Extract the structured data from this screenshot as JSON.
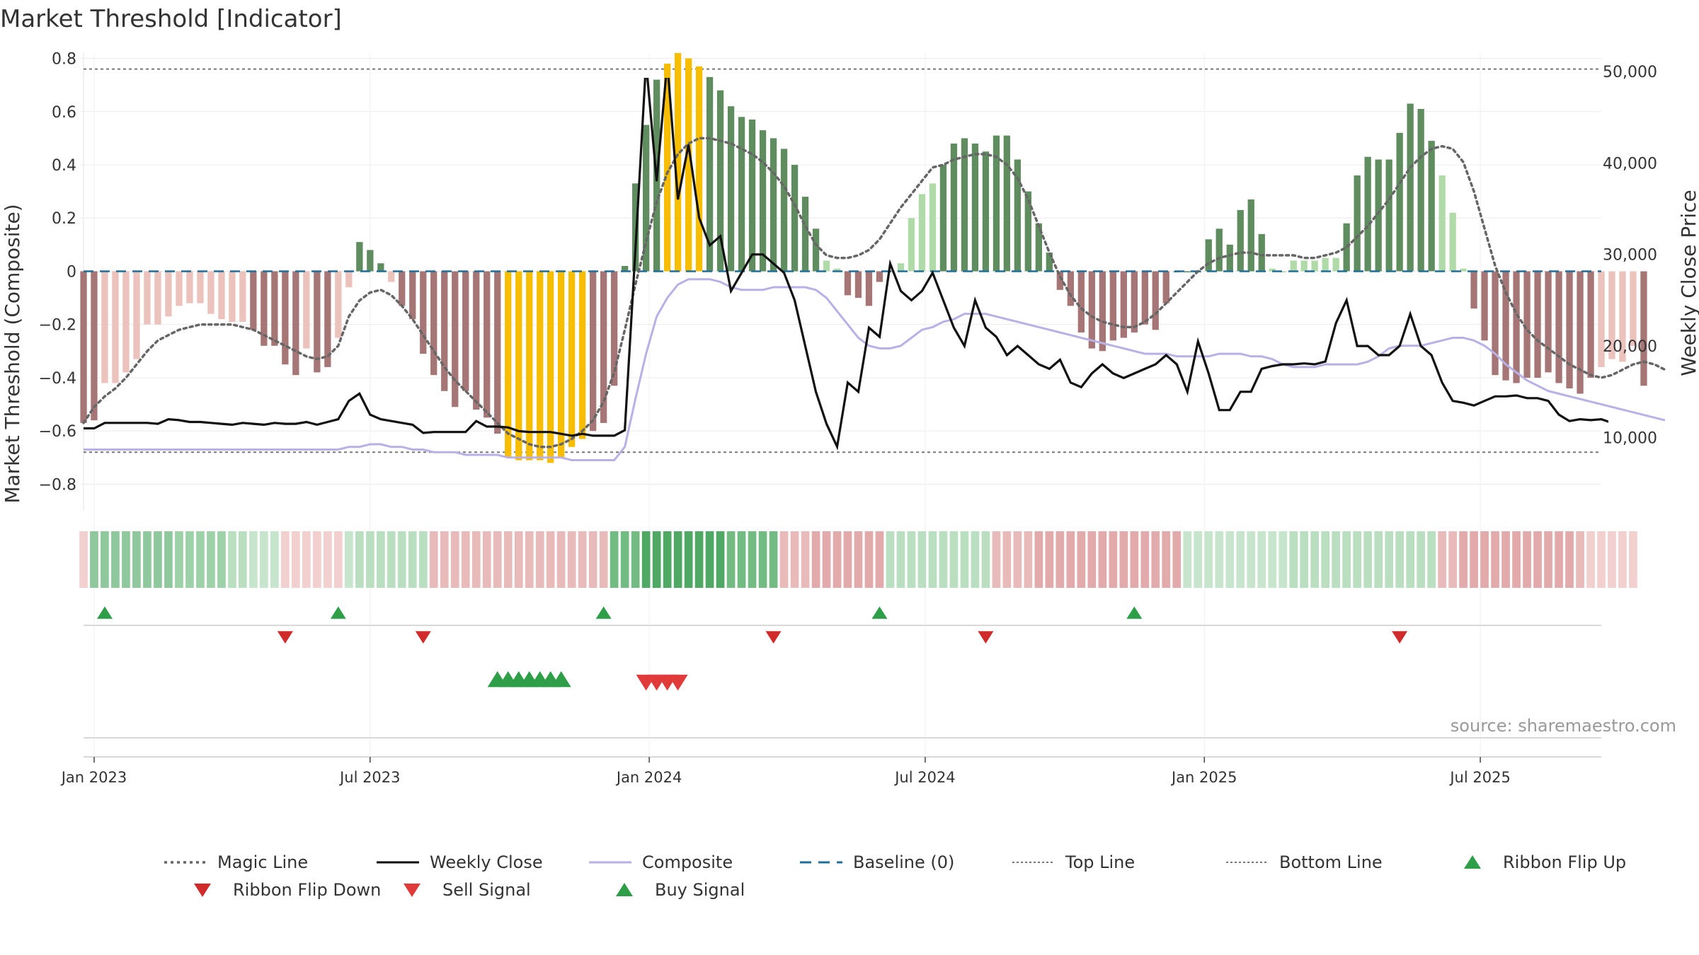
{
  "chart_data": {
    "type": "bar",
    "title": "Market Threshold [Indicator]",
    "ylabel": "Market Threshold (Composite)",
    "y2label": "Weekly Close Price",
    "ylim": [
      -0.9,
      0.82
    ],
    "y2lim": [
      2000,
      52000
    ],
    "yticks": [
      0.8,
      0.6,
      0.4,
      0.2,
      0,
      -0.2,
      -0.4,
      -0.6,
      -0.8
    ],
    "ytick_labels": [
      "0.8",
      "0.6",
      "0.4",
      "0.2",
      "0",
      "−0.2",
      "−0.4",
      "−0.6",
      "−0.8"
    ],
    "y2ticks": [
      50000,
      40000,
      30000,
      20000,
      10000
    ],
    "y2tick_labels": [
      "50,000",
      "40,000",
      "30,000",
      "20,000",
      "10,000"
    ],
    "x_start": "2022-12-26",
    "weeks": 144,
    "top_line": 0.76,
    "bottom_line": -0.68,
    "xticks": [
      {
        "label": "Jan 2023",
        "week": 1
      },
      {
        "label": "Jul 2023",
        "week": 27
      },
      {
        "label": "Jan 2024",
        "week": 53.3
      },
      {
        "label": "Jul 2024",
        "week": 79.3
      },
      {
        "label": "Jan 2025",
        "week": 105.6
      },
      {
        "label": "Jul 2025",
        "week": 131.6
      }
    ],
    "composite_bars": [
      -0.57,
      -0.56,
      -0.42,
      -0.42,
      -0.38,
      -0.33,
      -0.2,
      -0.2,
      -0.17,
      -0.13,
      -0.12,
      -0.12,
      -0.16,
      -0.18,
      -0.19,
      -0.19,
      -0.22,
      -0.28,
      -0.28,
      -0.35,
      -0.39,
      -0.29,
      -0.38,
      -0.36,
      -0.25,
      -0.06,
      0.11,
      0.08,
      0.03,
      -0.04,
      -0.13,
      -0.18,
      -0.31,
      -0.39,
      -0.45,
      -0.51,
      -0.45,
      -0.52,
      -0.55,
      -0.61,
      -0.7,
      -0.71,
      -0.71,
      -0.71,
      -0.72,
      -0.7,
      -0.66,
      -0.63,
      -0.6,
      -0.57,
      -0.43,
      0.02,
      0.33,
      0.55,
      0.72,
      0.78,
      0.82,
      0.8,
      0.77,
      0.73,
      0.68,
      0.62,
      0.58,
      0.57,
      0.53,
      0.5,
      0.46,
      0.4,
      0.28,
      0.16,
      0.04,
      0.01,
      -0.09,
      -0.1,
      -0.13,
      -0.04,
      0.0,
      0.03,
      0.2,
      0.29,
      0.33,
      0.4,
      0.48,
      0.5,
      0.48,
      0.45,
      0.51,
      0.51,
      0.42,
      0.3,
      0.18,
      0.07,
      -0.07,
      -0.13,
      -0.23,
      -0.29,
      -0.3,
      -0.26,
      -0.25,
      -0.23,
      -0.2,
      -0.22,
      -0.12,
      0.0,
      0.0,
      0.0,
      0.12,
      0.16,
      0.1,
      0.23,
      0.27,
      0.14,
      0.01,
      0.0,
      0.04,
      0.04,
      0.04,
      0.05,
      0.05,
      0.18,
      0.36,
      0.43,
      0.42,
      0.42,
      0.52,
      0.63,
      0.61,
      0.49,
      0.36,
      0.22,
      0.01,
      -0.14,
      -0.26,
      -0.39,
      -0.41,
      -0.42,
      -0.4,
      -0.4,
      -0.38,
      -0.42,
      -0.44,
      -0.46,
      -0.4,
      -0.36,
      -0.33,
      -0.34,
      -0.28,
      -0.43
    ],
    "magic_line": [
      -0.57,
      -0.51,
      -0.47,
      -0.44,
      -0.4,
      -0.35,
      -0.3,
      -0.26,
      -0.24,
      -0.22,
      -0.21,
      -0.2,
      -0.2,
      -0.2,
      -0.2,
      -0.21,
      -0.22,
      -0.24,
      -0.26,
      -0.28,
      -0.3,
      -0.32,
      -0.33,
      -0.32,
      -0.28,
      -0.17,
      -0.11,
      -0.08,
      -0.07,
      -0.09,
      -0.13,
      -0.18,
      -0.24,
      -0.3,
      -0.36,
      -0.41,
      -0.45,
      -0.49,
      -0.53,
      -0.57,
      -0.61,
      -0.63,
      -0.65,
      -0.66,
      -0.66,
      -0.65,
      -0.63,
      -0.6,
      -0.56,
      -0.49,
      -0.38,
      -0.22,
      -0.05,
      0.11,
      0.26,
      0.37,
      0.44,
      0.48,
      0.5,
      0.5,
      0.49,
      0.48,
      0.46,
      0.44,
      0.41,
      0.37,
      0.32,
      0.25,
      0.17,
      0.1,
      0.06,
      0.05,
      0.05,
      0.06,
      0.08,
      0.12,
      0.18,
      0.24,
      0.29,
      0.34,
      0.39,
      0.4,
      0.42,
      0.43,
      0.44,
      0.44,
      0.43,
      0.4,
      0.35,
      0.27,
      0.17,
      0.07,
      -0.02,
      -0.09,
      -0.14,
      -0.17,
      -0.19,
      -0.2,
      -0.21,
      -0.21,
      -0.19,
      -0.16,
      -0.12,
      -0.08,
      -0.04,
      0.0,
      0.03,
      0.05,
      0.06,
      0.07,
      0.07,
      0.06,
      0.06,
      0.06,
      0.06,
      0.05,
      0.05,
      0.06,
      0.07,
      0.09,
      0.13,
      0.17,
      0.22,
      0.27,
      0.33,
      0.39,
      0.43,
      0.46,
      0.47,
      0.46,
      0.41,
      0.3,
      0.16,
      0.02,
      -0.08,
      -0.16,
      -0.22,
      -0.26,
      -0.29,
      -0.32,
      -0.35,
      -0.37,
      -0.39,
      -0.4,
      -0.39,
      -0.37,
      -0.35,
      -0.34,
      -0.35,
      -0.37
    ],
    "composite_line": [
      -0.67,
      -0.67,
      -0.67,
      -0.67,
      -0.67,
      -0.67,
      -0.67,
      -0.67,
      -0.67,
      -0.67,
      -0.67,
      -0.67,
      -0.67,
      -0.67,
      -0.67,
      -0.67,
      -0.67,
      -0.67,
      -0.67,
      -0.67,
      -0.67,
      -0.67,
      -0.67,
      -0.67,
      -0.67,
      -0.66,
      -0.66,
      -0.65,
      -0.65,
      -0.66,
      -0.66,
      -0.67,
      -0.67,
      -0.68,
      -0.68,
      -0.68,
      -0.69,
      -0.69,
      -0.69,
      -0.69,
      -0.7,
      -0.7,
      -0.7,
      -0.7,
      -0.7,
      -0.7,
      -0.71,
      -0.71,
      -0.71,
      -0.71,
      -0.71,
      -0.66,
      -0.48,
      -0.31,
      -0.17,
      -0.1,
      -0.05,
      -0.03,
      -0.03,
      -0.03,
      -0.04,
      -0.06,
      -0.07,
      -0.07,
      -0.07,
      -0.06,
      -0.06,
      -0.06,
      -0.06,
      -0.07,
      -0.1,
      -0.15,
      -0.2,
      -0.25,
      -0.28,
      -0.29,
      -0.29,
      -0.28,
      -0.25,
      -0.22,
      -0.21,
      -0.19,
      -0.18,
      -0.16,
      -0.16,
      -0.16,
      -0.17,
      -0.18,
      -0.19,
      -0.2,
      -0.21,
      -0.22,
      -0.23,
      -0.24,
      -0.25,
      -0.26,
      -0.27,
      -0.28,
      -0.29,
      -0.3,
      -0.31,
      -0.31,
      -0.31,
      -0.32,
      -0.32,
      -0.32,
      -0.32,
      -0.31,
      -0.31,
      -0.31,
      -0.32,
      -0.32,
      -0.33,
      -0.35,
      -0.36,
      -0.36,
      -0.36,
      -0.35,
      -0.35,
      -0.35,
      -0.35,
      -0.34,
      -0.32,
      -0.29,
      -0.28,
      -0.28,
      -0.28,
      -0.27,
      -0.26,
      -0.25,
      -0.25,
      -0.26,
      -0.28,
      -0.31,
      -0.35,
      -0.38,
      -0.41,
      -0.43,
      -0.45,
      -0.46,
      -0.47,
      -0.48,
      -0.49,
      -0.5,
      -0.51,
      -0.52,
      -0.53,
      -0.54,
      -0.55,
      -0.56
    ],
    "weekly_close": [
      11000,
      11000,
      11600,
      11600,
      11600,
      11600,
      11600,
      11500,
      12000,
      11900,
      11700,
      11700,
      11600,
      11500,
      11400,
      11600,
      11500,
      11400,
      11600,
      11500,
      11500,
      11700,
      11400,
      11700,
      12000,
      14000,
      14800,
      12500,
      12000,
      11800,
      11600,
      11400,
      10500,
      10600,
      10600,
      10600,
      10600,
      11800,
      11200,
      11200,
      11100,
      10700,
      10600,
      10600,
      10600,
      10400,
      10200,
      10400,
      10200,
      10200,
      10200,
      10800,
      30500,
      51000,
      38000,
      51000,
      36000,
      42000,
      34000,
      31000,
      32000,
      26000,
      28000,
      30000,
      30000,
      29000,
      28000,
      25000,
      20000,
      15000,
      11500,
      9000,
      16000,
      15000,
      22000,
      21000,
      29000,
      26000,
      25000,
      26000,
      28000,
      25000,
      22000,
      20000,
      25000,
      22000,
      21000,
      19000,
      20000,
      19000,
      18000,
      17500,
      18500,
      16000,
      15500,
      17000,
      18000,
      17000,
      16500,
      17000,
      17500,
      18000,
      19000,
      18000,
      15000,
      20500,
      17000,
      13000,
      13000,
      15000,
      15000,
      17500,
      17800,
      18000,
      18000,
      18100,
      18000,
      18300,
      22500,
      25000,
      20000,
      20000,
      19000,
      19000,
      20000,
      23500,
      20000,
      19000,
      16000,
      14000,
      13800,
      13500,
      14000,
      14500,
      14500,
      14600,
      14300,
      14300,
      14000,
      12500,
      11800,
      12000,
      11900,
      12000,
      11600,
      11500,
      11300,
      11200
    ],
    "ribbon_colors": [
      "#f2d0d0",
      "#8fc89c",
      "#8fc89c",
      "#8fc89c",
      "#8fc89c",
      "#8fc89c",
      "#8fc89c",
      "#8fc89c",
      "#8fc89c",
      "#9dd1a8",
      "#9dd1a8",
      "#9dd1a8",
      "#9dd1a8",
      "#9dd1a8",
      "#b9dfc0",
      "#b9dfc0",
      "#c6e5cc",
      "#c6e5cc",
      "#c6e5cc",
      "#f2d0d0",
      "#f2d0d0",
      "#f2d0d0",
      "#f2d0d0",
      "#f2d0d0",
      "#f2d0d0",
      "#c6e5cc",
      "#b9dfc0",
      "#b9dfc0",
      "#b9dfc0",
      "#b9dfc0",
      "#b9dfc0",
      "#b9dfc0",
      "#b9dfc0",
      "#e8baba",
      "#e8baba",
      "#e8baba",
      "#e8baba",
      "#e8baba",
      "#e8baba",
      "#e8baba",
      "#e8baba",
      "#e8baba",
      "#e8baba",
      "#e8baba",
      "#e8baba",
      "#e8baba",
      "#e8baba",
      "#e8baba",
      "#e8baba",
      "#e8baba",
      "#72bb83",
      "#72bb83",
      "#72bb83",
      "#4fa864",
      "#4fa864",
      "#4fa864",
      "#4fa864",
      "#4fa864",
      "#4fa864",
      "#4fa864",
      "#4fa864",
      "#72bb83",
      "#72bb83",
      "#72bb83",
      "#72bb83",
      "#72bb83",
      "#e8baba",
      "#e8baba",
      "#e8baba",
      "#e2aaaa",
      "#e2aaaa",
      "#e2aaaa",
      "#e2aaaa",
      "#e2aaaa",
      "#e2aaaa",
      "#e2aaaa",
      "#b9dfc0",
      "#b9dfc0",
      "#b9dfc0",
      "#b9dfc0",
      "#b9dfc0",
      "#b9dfc0",
      "#b9dfc0",
      "#b9dfc0",
      "#b9dfc0",
      "#b9dfc0",
      "#e8baba",
      "#e8baba",
      "#e8baba",
      "#e8baba",
      "#e2aaaa",
      "#e2aaaa",
      "#e2aaaa",
      "#e2aaaa",
      "#e2aaaa",
      "#e2aaaa",
      "#e2aaaa",
      "#e2aaaa",
      "#e2aaaa",
      "#e2aaaa",
      "#e2aaaa",
      "#e2aaaa",
      "#e2aaaa",
      "#e2aaaa",
      "#c6e5cc",
      "#c6e5cc",
      "#c6e5cc",
      "#c6e5cc",
      "#c6e5cc",
      "#c6e5cc",
      "#c6e5cc",
      "#c6e5cc",
      "#c6e5cc",
      "#c6e5cc",
      "#b9dfc0",
      "#b9dfc0",
      "#b9dfc0",
      "#b9dfc0",
      "#b9dfc0",
      "#b9dfc0",
      "#b9dfc0",
      "#b9dfc0",
      "#b9dfc0",
      "#b9dfc0",
      "#b9dfc0",
      "#b9dfc0",
      "#b9dfc0",
      "#b9dfc0",
      "#e8baba",
      "#e8baba",
      "#e2aaaa",
      "#e2aaaa",
      "#e2aaaa",
      "#e2aaaa",
      "#e2aaaa",
      "#e2aaaa",
      "#e2aaaa",
      "#e2aaaa",
      "#e2aaaa",
      "#e2aaaa",
      "#e2aaaa",
      "#e8baba",
      "#f2d0d0",
      "#f2d0d0",
      "#f2d0d0",
      "#f2d0d0",
      "#f2d0d0"
    ],
    "ribbon_flip_up_weeks": [
      2,
      24,
      49,
      75,
      99
    ],
    "ribbon_flip_down_weeks": [
      19,
      32,
      65,
      85,
      124
    ],
    "buy_signal_weeks": [
      39,
      40,
      41,
      42,
      43,
      44,
      45
    ],
    "sell_signal_weeks": [
      53,
      54,
      55,
      56
    ],
    "legend": [
      {
        "label": "Magic Line",
        "kind": "dotted",
        "color": "#666666"
      },
      {
        "label": "Weekly Close",
        "kind": "solid",
        "color": "#111111"
      },
      {
        "label": "Composite",
        "kind": "solid",
        "color": "#b9b0e6"
      },
      {
        "label": "Baseline (0)",
        "kind": "dashed",
        "color": "#1f6f9a"
      },
      {
        "label": "Top Line",
        "kind": "dotted-fine",
        "color": "#777777"
      },
      {
        "label": "Bottom Line",
        "kind": "dotted-fine",
        "color": "#777777"
      },
      {
        "label": "Ribbon Flip Up",
        "kind": "tri-up",
        "color": "#2e9e48"
      },
      {
        "label": "Ribbon Flip Down",
        "kind": "tri-down",
        "color": "#d02a2a"
      },
      {
        "label": "Sell Signal",
        "kind": "tri-down",
        "color": "#e03a3a"
      },
      {
        "label": "Buy Signal",
        "kind": "tri-up",
        "color": "#2e9e48"
      }
    ],
    "colors": {
      "bar_green_dark": "#5f8d5f",
      "bar_green_light": "#b0dba8",
      "bar_red_dark": "#a67676",
      "bar_red_light": "#ebc2bc",
      "bar_extreme": "#f7bd00",
      "close_line": "#111111",
      "composite_line": "#b9b0e6",
      "baseline": "#1f6f9a"
    }
  },
  "source": "source: sharemaestro.com"
}
